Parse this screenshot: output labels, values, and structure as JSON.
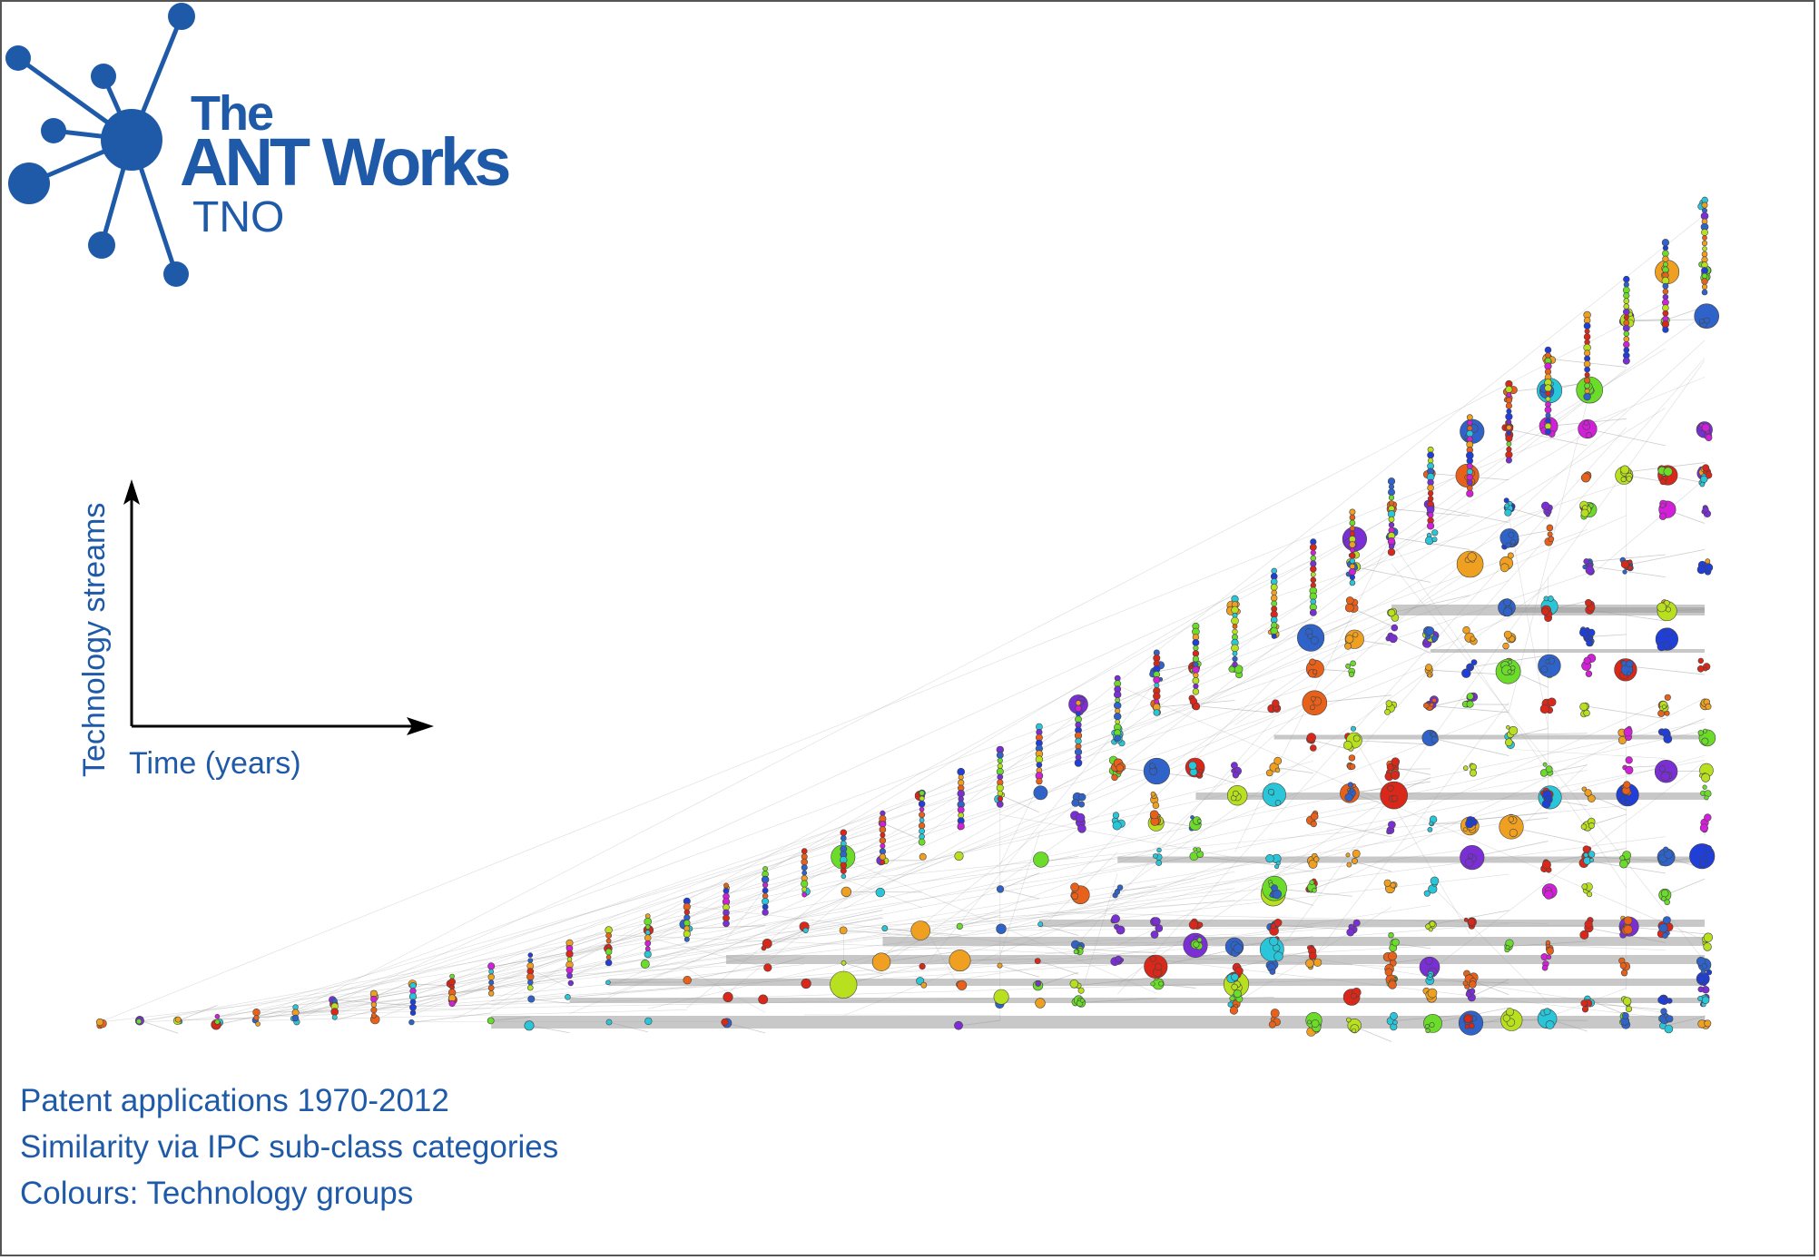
{
  "logo": {
    "line1": "The",
    "line2": "ANT Works",
    "line3": "TNO",
    "color": "#1f5aa8"
  },
  "axes": {
    "y_label": "Technology streams",
    "x_label": "Time (years)"
  },
  "caption": {
    "lines": [
      "Patent applications 1970-2012",
      "Similarity via IPC sub-class categories",
      "Colours: Technology groups"
    ]
  },
  "colors": {
    "text": "#1f5aa8",
    "edge": "#9a9a9a",
    "node_palette": [
      "#e8611a",
      "#2f63c9",
      "#6bdc2a",
      "#b9e01f",
      "#29c6d9",
      "#d9281a",
      "#f0a020",
      "#7a2fd4",
      "#d21fd8",
      "#1f3fd8"
    ]
  }
}
